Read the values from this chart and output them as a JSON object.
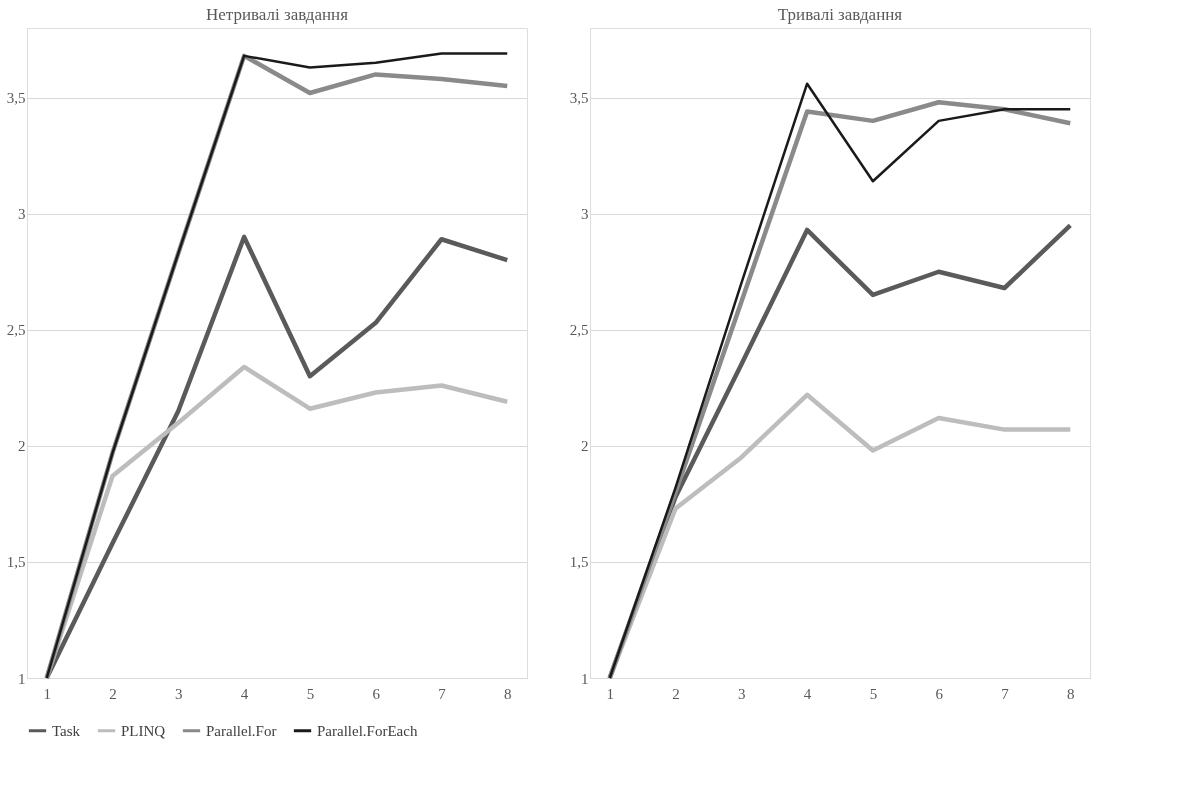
{
  "chart_data": [
    {
      "type": "line",
      "title": "Нетривалі завдання",
      "categories": [
        "1",
        "2",
        "3",
        "4",
        "5",
        "6",
        "7",
        "8"
      ],
      "ylim": [
        1,
        3.8
      ],
      "yticks": [
        1,
        {
          "value": 1.5,
          "label": "1,5"
        },
        2,
        {
          "value": 2.5,
          "label": "2,5"
        },
        3,
        {
          "value": 3.5,
          "label": "3,5"
        }
      ],
      "grid": "y",
      "legend": "bottom",
      "marker": "none",
      "line_style": "solid",
      "series": [
        {
          "name": "Task",
          "color": "#5a5a5a",
          "values": [
            1,
            1.58,
            2.15,
            2.9,
            2.3,
            2.53,
            2.89,
            2.8
          ]
        },
        {
          "name": "PLINQ",
          "color": "#bdbdbd",
          "values": [
            1,
            1.87,
            2.1,
            2.34,
            2.16,
            2.23,
            2.26,
            2.19
          ]
        },
        {
          "name": "Parallel.For",
          "color": "#8a8a8a",
          "values": [
            1,
            1.97,
            2.83,
            3.68,
            3.52,
            3.6,
            3.58,
            3.55
          ]
        },
        {
          "name": "Parallel.ForEach",
          "color": "#1a1a1a",
          "values": [
            1,
            1.97,
            2.83,
            3.68,
            3.63,
            3.65,
            3.69,
            3.69
          ]
        }
      ]
    },
    {
      "type": "line",
      "title": "Тривалі завдання",
      "categories": [
        "1",
        "2",
        "3",
        "4",
        "5",
        "6",
        "7",
        "8"
      ],
      "ylim": [
        1,
        3.8
      ],
      "yticks": [
        1,
        {
          "value": 1.5,
          "label": "1,5"
        },
        2,
        {
          "value": 2.5,
          "label": "2,5"
        },
        3,
        {
          "value": 3.5,
          "label": "3,5"
        }
      ],
      "grid": "y",
      "legend": "bottom",
      "marker": "none",
      "line_style": "solid",
      "series": [
        {
          "name": "Task",
          "color": "#5a5a5a",
          "values": [
            1,
            1.78,
            2.35,
            2.93,
            2.65,
            2.75,
            2.68,
            2.95
          ]
        },
        {
          "name": "PLINQ",
          "color": "#bdbdbd",
          "values": [
            1,
            1.73,
            1.95,
            2.22,
            1.98,
            2.12,
            2.07,
            2.07
          ]
        },
        {
          "name": "Parallel.For",
          "color": "#8a8a8a",
          "values": [
            1,
            1.8,
            2.62,
            3.44,
            3.4,
            3.48,
            3.45,
            3.39
          ]
        },
        {
          "name": "Parallel.ForEach",
          "color": "#1a1a1a",
          "values": [
            1,
            1.82,
            2.7,
            3.56,
            3.14,
            3.4,
            3.45,
            3.45
          ]
        }
      ]
    }
  ]
}
